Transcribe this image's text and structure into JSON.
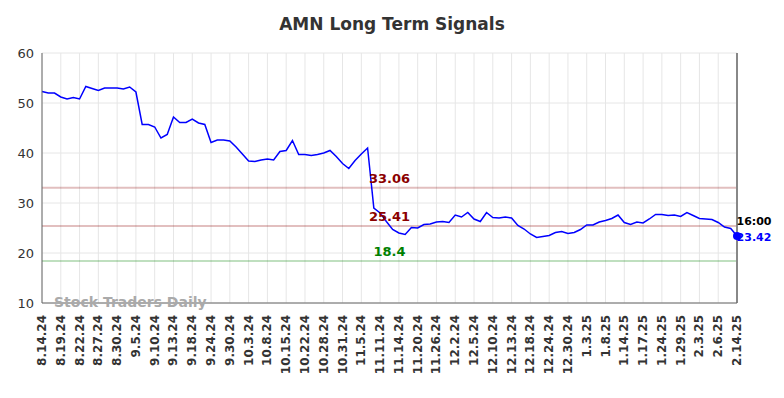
{
  "chart_data": {
    "type": "line",
    "title": "AMN Long Term Signals",
    "watermark": "Stock Traders Daily",
    "last_point_label": "16:00",
    "color": "#0000ff",
    "grid": true,
    "ylim": [
      10,
      60
    ],
    "yticks": [
      10,
      20,
      30,
      40,
      50,
      60
    ],
    "categories": [
      "8.14.24",
      null,
      null,
      "8.19.24",
      null,
      null,
      "8.22.24",
      null,
      null,
      "8.27.24",
      null,
      null,
      "8.30.24",
      null,
      null,
      "9.5.24",
      null,
      null,
      "9.10.24",
      null,
      null,
      "9.13.24",
      null,
      null,
      "9.18.24",
      null,
      null,
      "9.24.24",
      null,
      null,
      "9.30.24",
      null,
      null,
      "10.3.24",
      null,
      null,
      "10.8.24",
      null,
      null,
      "10.15.24",
      null,
      null,
      "10.22.24",
      null,
      null,
      "10.28.24",
      null,
      null,
      "10.31.24",
      null,
      null,
      "11.5.24",
      null,
      null,
      "11.11.24",
      null,
      null,
      "11.14.24",
      null,
      null,
      "11.20.24",
      null,
      null,
      "11.26.24",
      null,
      null,
      "12.2.24",
      null,
      null,
      "12.5.24",
      null,
      null,
      "12.10.24",
      null,
      null,
      "12.13.24",
      null,
      null,
      "12.18.24",
      null,
      null,
      "12.24.24",
      null,
      null,
      "12.30.24",
      null,
      null,
      "1.3.25",
      null,
      null,
      "1.8.25",
      null,
      null,
      "1.14.25",
      null,
      null,
      "1.17.25",
      null,
      null,
      "1.24.25",
      null,
      null,
      "1.29.25",
      null,
      null,
      "2.3.25",
      null,
      null,
      "2.6.25",
      null,
      null,
      "2.14.25"
    ],
    "values": [
      52.3,
      52,
      52,
      51.2,
      50.8,
      51.1,
      50.8,
      53.3,
      52.9,
      52.5,
      53,
      53,
      53,
      52.8,
      53.2,
      52.2,
      45.7,
      45.7,
      45.2,
      43,
      43.7,
      47.2,
      46.1,
      46.1,
      46.8,
      46,
      45.7,
      42.1,
      42.6,
      42.6,
      42.4,
      41.2,
      39.8,
      38.4,
      38.3,
      38.6,
      38.8,
      38.6,
      40.3,
      40.5,
      42.5,
      39.7,
      39.7,
      39.5,
      39.7,
      40,
      40.5,
      39.3,
      37.9,
      36.9,
      38.5,
      39.8,
      41,
      29,
      28,
      26.3,
      24.7,
      24,
      23.7,
      25.1,
      25,
      25.7,
      25.8,
      26.2,
      26.3,
      26.1,
      27.6,
      27.2,
      28.1,
      26.8,
      26.3,
      28.1,
      27.1,
      27,
      27.2,
      27,
      25.5,
      24.8,
      23.8,
      23.1,
      23.3,
      23.5,
      24.1,
      24.3,
      23.9,
      24.1,
      24.7,
      25.6,
      25.6,
      26.2,
      26.5,
      26.9,
      27.6,
      26.1,
      25.7,
      26.2,
      26,
      26.8,
      27.7,
      27.7,
      27.5,
      27.6,
      27.3,
      28.1,
      27.5,
      26.9,
      26.8,
      26.7,
      26.1,
      25.2,
      24.9,
      23.42
    ],
    "reference_lines": [
      {
        "value": 33.06,
        "color": "#8b0000"
      },
      {
        "value": 25.41,
        "color": "#8b0000"
      },
      {
        "value": 18.4,
        "color": "#008000"
      }
    ]
  }
}
